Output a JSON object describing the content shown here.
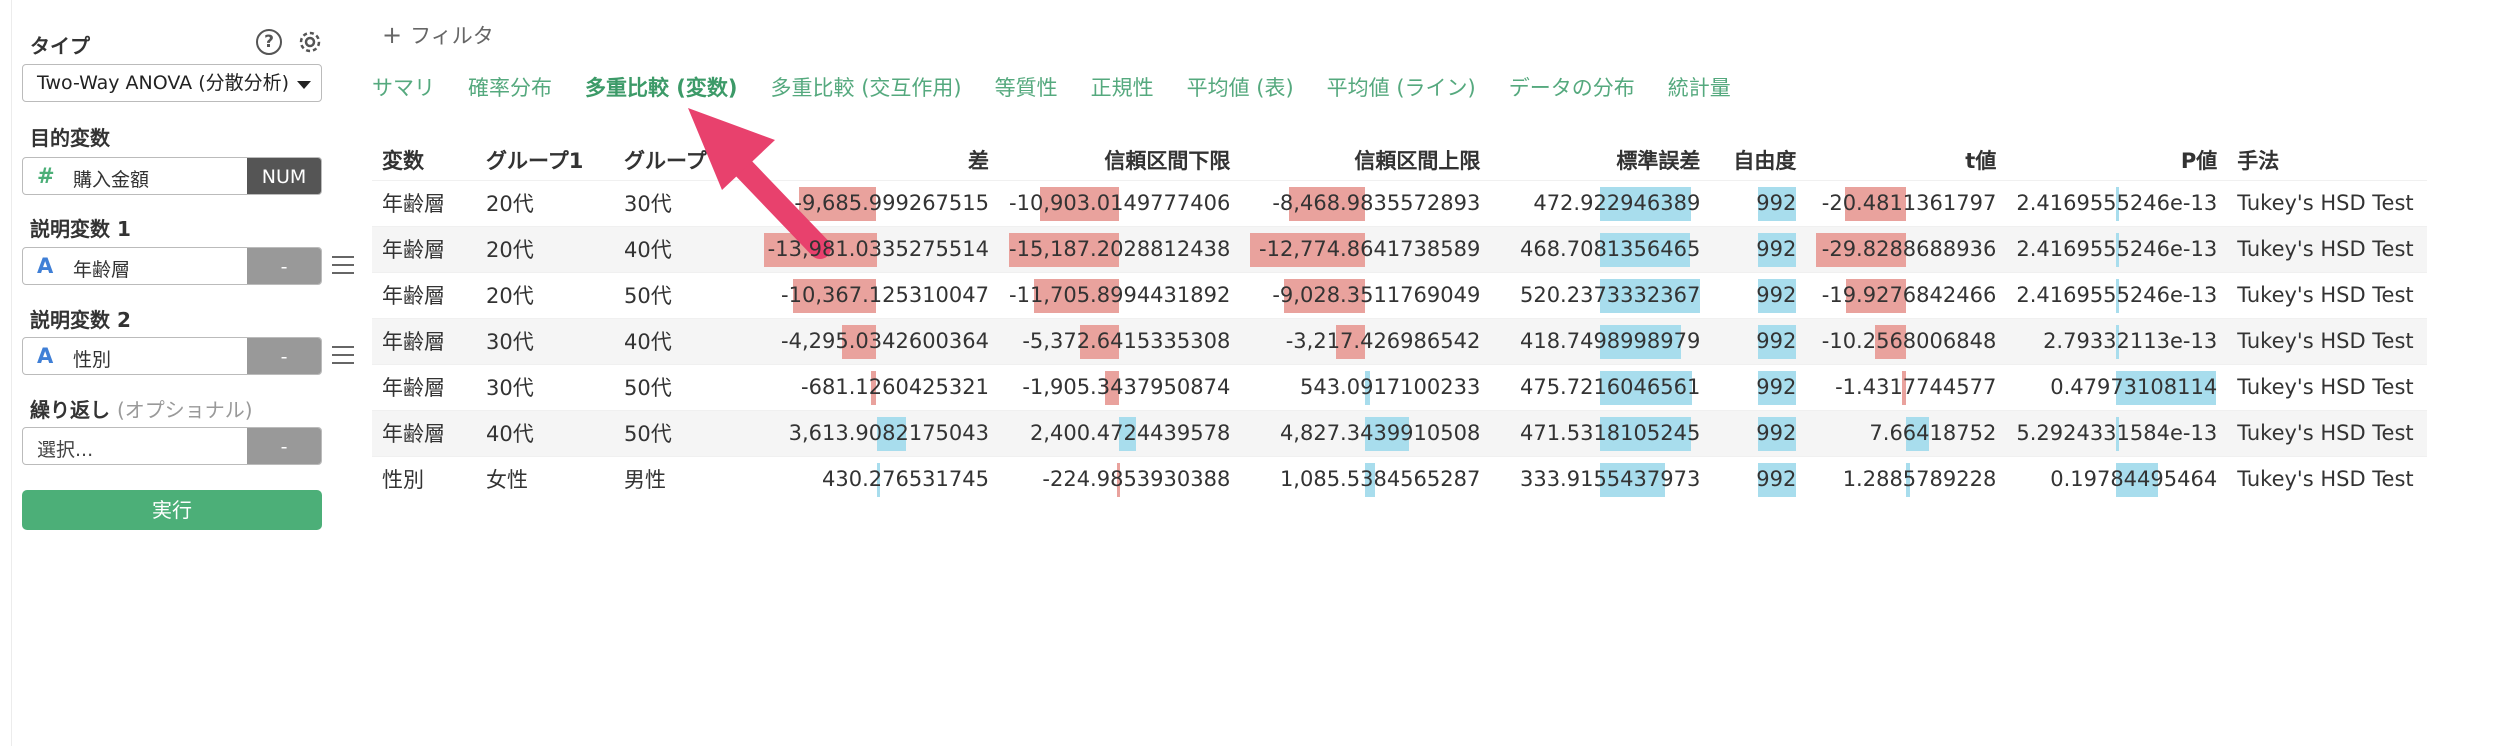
{
  "sidebar": {
    "type_label": "タイプ",
    "type_value": "Two-Way ANOVA (分散分析)",
    "target_label": "目的変数",
    "target_field": {
      "icon": "#",
      "name": "購入金額",
      "tag": "NUM"
    },
    "explain1_label": "説明変数 1",
    "explain1_field": {
      "icon": "A",
      "name": "年齢層",
      "tag": "-"
    },
    "explain2_label": "説明変数 2",
    "explain2_field": {
      "icon": "A",
      "name": "性別",
      "tag": "-"
    },
    "repeat_label": "繰り返し",
    "repeat_optional": "(オプショナル)",
    "repeat_placeholder": "選択...",
    "repeat_tag": "-",
    "run_label": "実行"
  },
  "filter_label": "フィルタ",
  "tabs": [
    {
      "label": "サマリ"
    },
    {
      "label": "確率分布"
    },
    {
      "label": "多重比較 (変数)",
      "active": true
    },
    {
      "label": "多重比較 (交互作用)"
    },
    {
      "label": "等質性"
    },
    {
      "label": "正規性"
    },
    {
      "label": "平均値 (表)"
    },
    {
      "label": "平均値 (ライン)"
    },
    {
      "label": "データの分布"
    },
    {
      "label": "統計量"
    }
  ],
  "table": {
    "headers": [
      "変数",
      "グループ1",
      "グループ2",
      "差",
      "信頼区間下限",
      "信頼区間上限",
      "標準誤差",
      "自由度",
      "t値",
      "P値",
      "手法"
    ],
    "header_visible": [
      "変数",
      "グループ1",
      "グループ",
      "差",
      "信頼区間下限",
      "信頼区間上限",
      "標準誤差",
      "自由度",
      "t値",
      "P値",
      "手法"
    ],
    "rows": [
      [
        "年齢層",
        "20代",
        "30代",
        "-9,685.999267515",
        "-10,903.0149777406",
        "-8,468.9835572893",
        "472.922946389",
        "992",
        "-20.4811361797",
        "2.4169555246e-13",
        "Tukey's HSD Test"
      ],
      [
        "年齢層",
        "20代",
        "40代",
        "-13,981.0335275514",
        "-15,187.2028812438",
        "-12,774.8641738589",
        "468.7081356465",
        "992",
        "-29.8288688936",
        "2.4169555246e-13",
        "Tukey's HSD Test"
      ],
      [
        "年齢層",
        "20代",
        "50代",
        "-10,367.125310047",
        "-11,705.8994431892",
        "-9,028.3511769049",
        "520.2373332367",
        "992",
        "-19.9276842466",
        "2.4169555246e-13",
        "Tukey's HSD Test"
      ],
      [
        "年齢層",
        "30代",
        "40代",
        "-4,295.0342600364",
        "-5,372.6415335308",
        "-3,217.426986542",
        "418.7498998979",
        "992",
        "-10.2568006848",
        "2.79332113e-13",
        "Tukey's HSD Test"
      ],
      [
        "年齢層",
        "30代",
        "50代",
        "-681.1260425321",
        "-1,905.3437950874",
        "543.0917100233",
        "475.7216046561",
        "992",
        "-1.4317744577",
        "0.47973108114",
        "Tukey's HSD Test"
      ],
      [
        "年齢層",
        "40代",
        "50代",
        "3,613.9082175043",
        "2,400.4724439578",
        "4,827.3439910508",
        "471.5318105245",
        "992",
        "7.66418752",
        "5.2924331584e-13",
        "Tukey's HSD Test"
      ],
      [
        "性別",
        "女性",
        "男性",
        "430.276531745",
        "-224.9853930388",
        "1,085.5384565287",
        "333.9155437973",
        "992",
        "1.2885789228",
        "0.19784495464",
        "Tukey's HSD Test"
      ]
    ]
  },
  "colors": {
    "accent": "#4caf78",
    "tab": "#55a97e",
    "negative_bar": "#e9a29d",
    "positive_bar": "#a8dded",
    "arrow": "#e8416d"
  }
}
